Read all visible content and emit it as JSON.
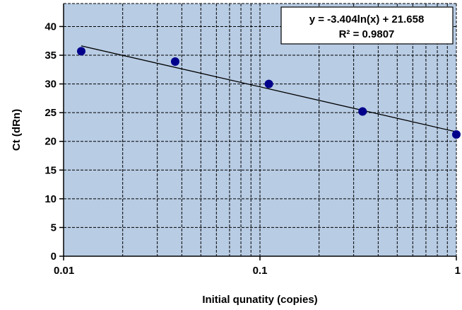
{
  "chart_data": {
    "type": "scatter",
    "title": "",
    "xlabel": "Initial qunatity (copies)",
    "ylabel": "Ct (dRn)",
    "xscale": "log",
    "xlim": [
      0.01,
      1
    ],
    "ylim": [
      0,
      44
    ],
    "x_ticks": [
      {
        "value": 0.01,
        "label": "0.01"
      },
      {
        "value": 0.1,
        "label": "0.1"
      },
      {
        "value": 1,
        "label": "1"
      }
    ],
    "y_ticks": [
      {
        "value": 0,
        "label": "0"
      },
      {
        "value": 5,
        "label": "5"
      },
      {
        "value": 10,
        "label": "10"
      },
      {
        "value": 15,
        "label": "15"
      },
      {
        "value": 20,
        "label": "20"
      },
      {
        "value": 25,
        "label": "25"
      },
      {
        "value": 30,
        "label": "30"
      },
      {
        "value": 35,
        "label": "35"
      },
      {
        "value": 40,
        "label": "40"
      }
    ],
    "grid": true,
    "series": [
      {
        "x": [
          0.0123,
          0.037,
          0.111,
          0.333,
          1.0
        ],
        "y": [
          35.7,
          33.9,
          30.0,
          25.2,
          21.2
        ],
        "color": "#00008b"
      }
    ],
    "trendline": {
      "type": "logarithmic",
      "slope": -3.404,
      "intercept": 21.658,
      "x_range": [
        0.0123,
        1.0
      ],
      "equation": "y = -3.404ln(x) + 21.658",
      "r_squared": "R² = 0.9807"
    },
    "legend_position": "top-right",
    "colors": {
      "plot_background": "#b8cce4",
      "marker": "#00008b",
      "trendline": "#000000",
      "grid": "#000000"
    }
  }
}
